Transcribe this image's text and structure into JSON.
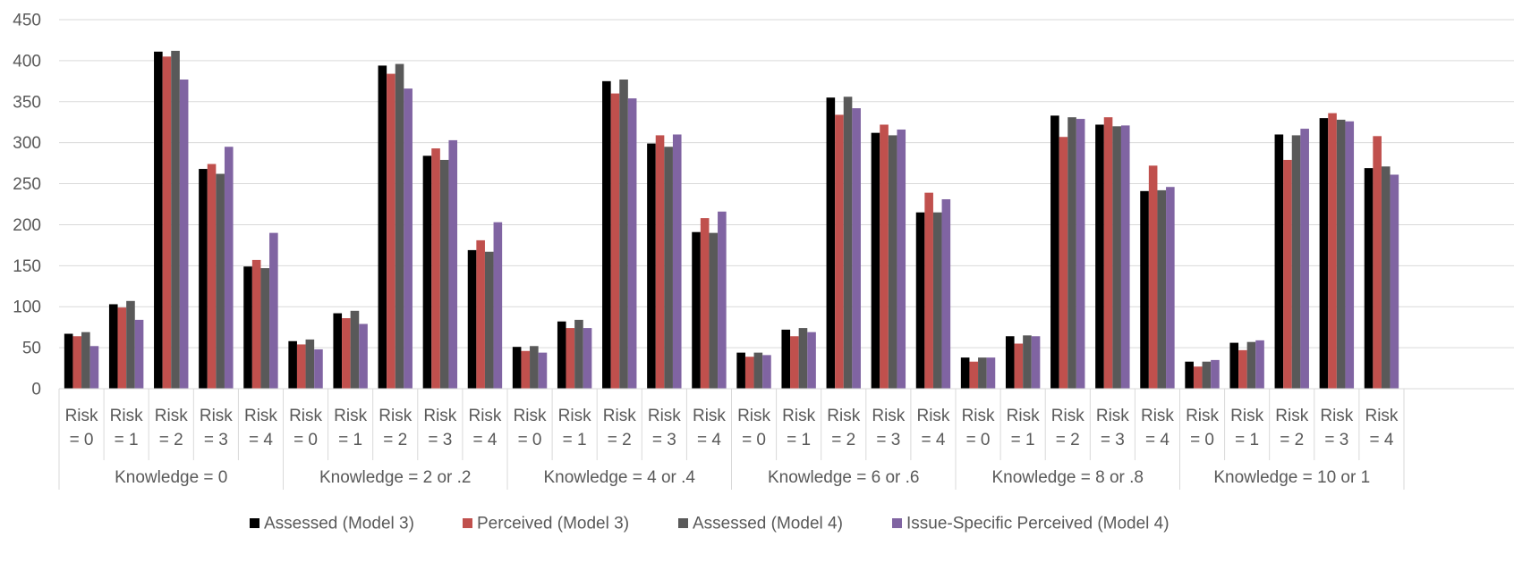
{
  "chart_data": {
    "type": "bar",
    "ylim": [
      0,
      450
    ],
    "yticks": [
      0,
      50,
      100,
      150,
      200,
      250,
      300,
      350,
      400,
      450
    ],
    "grid": true,
    "legend_position": "bottom",
    "groups": [
      "Knowledge = 0",
      "Knowledge = 2 or .2",
      "Knowledge = 4 or .4",
      "Knowledge = 6 or .6",
      "Knowledge = 8 or .8",
      "Knowledge = 10 or 1"
    ],
    "subcategories": [
      [
        "Risk",
        "= 0"
      ],
      [
        "Risk",
        "= 1"
      ],
      [
        "Risk",
        "= 2"
      ],
      [
        "Risk",
        "= 3"
      ],
      [
        "Risk",
        "= 4"
      ]
    ],
    "series": [
      {
        "name": "Assessed (Model 3)",
        "color": "#000000",
        "values": [
          67,
          103,
          411,
          268,
          149,
          58,
          92,
          394,
          284,
          169,
          51,
          82,
          375,
          299,
          191,
          44,
          72,
          355,
          312,
          215,
          38,
          64,
          333,
          322,
          241,
          33,
          56,
          310,
          330,
          269
        ]
      },
      {
        "name": "Perceived (Model 3)",
        "color": "#c0504d",
        "values": [
          64,
          99,
          405,
          274,
          157,
          54,
          86,
          384,
          293,
          181,
          46,
          74,
          360,
          309,
          208,
          39,
          64,
          334,
          322,
          239,
          33,
          55,
          307,
          331,
          272,
          27,
          47,
          279,
          336,
          308
        ]
      },
      {
        "name": "Assessed (Model 4)",
        "color": "#595959",
        "values": [
          69,
          107,
          412,
          262,
          147,
          60,
          95,
          396,
          279,
          167,
          52,
          84,
          377,
          295,
          190,
          44,
          74,
          356,
          309,
          215,
          38,
          65,
          331,
          320,
          242,
          33,
          57,
          309,
          328,
          271
        ]
      },
      {
        "name": "Issue-Specific Perceived (Model 4)",
        "color": "#8064a2",
        "values": [
          52,
          84,
          377,
          295,
          190,
          48,
          79,
          366,
          303,
          203,
          44,
          74,
          354,
          310,
          216,
          41,
          69,
          342,
          316,
          231,
          38,
          64,
          329,
          321,
          246,
          35,
          59,
          317,
          326,
          261
        ]
      }
    ]
  }
}
